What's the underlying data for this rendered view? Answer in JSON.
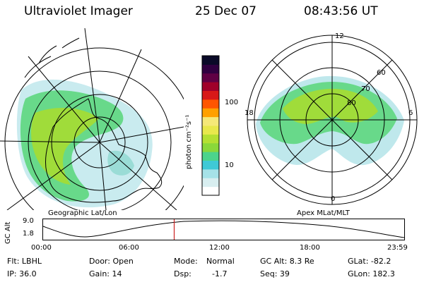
{
  "header": {
    "instrument": "Ultraviolet Imager",
    "date": "25 Dec 07",
    "time": "08:43:56 UT"
  },
  "left_panel": {
    "caption": "Geographic Lat/Lon"
  },
  "right_panel": {
    "caption": "Apex MLat/MLT",
    "mlt_labels": {
      "top": "12",
      "left": "18",
      "right": "6",
      "bottom": "0"
    },
    "mlat_labels": [
      "60",
      "70",
      "80"
    ]
  },
  "colorbar": {
    "unit_label": "photon cm⁻²s⁻¹",
    "ticks": [
      "100",
      "10"
    ],
    "colors": [
      "#ffffff",
      "#d8eef0",
      "#a6e2e8",
      "#3fc9d6",
      "#4cd48c",
      "#8ad83a",
      "#b4e032",
      "#e8e84c",
      "#f5e878",
      "#ffa000",
      "#ff5500",
      "#d81818",
      "#a0002a",
      "#600044",
      "#300040",
      "#0a0a28"
    ]
  },
  "altitude_plot": {
    "ylabel": "GC Alt",
    "yticks": [
      "9.0",
      "1.8"
    ],
    "xticks": [
      "00:00",
      "06:00",
      "12:00",
      "18:00",
      "23:59"
    ],
    "current_time_fraction": 0.363,
    "marker_color": "#cc2222"
  },
  "info": {
    "col1": [
      "Flt: LBHL",
      "IP: 36.0"
    ],
    "col2": [
      "Door: Open",
      "Gain: 14"
    ],
    "col3_labels": [
      "Mode:",
      "Dsp:"
    ],
    "col3_values": [
      "Normal",
      "-1.7"
    ],
    "col4": [
      "GC Alt: 8.3 Re",
      "Seq: 39"
    ],
    "col5": [
      "GLat: -82.2",
      "GLon: 182.3"
    ]
  }
}
